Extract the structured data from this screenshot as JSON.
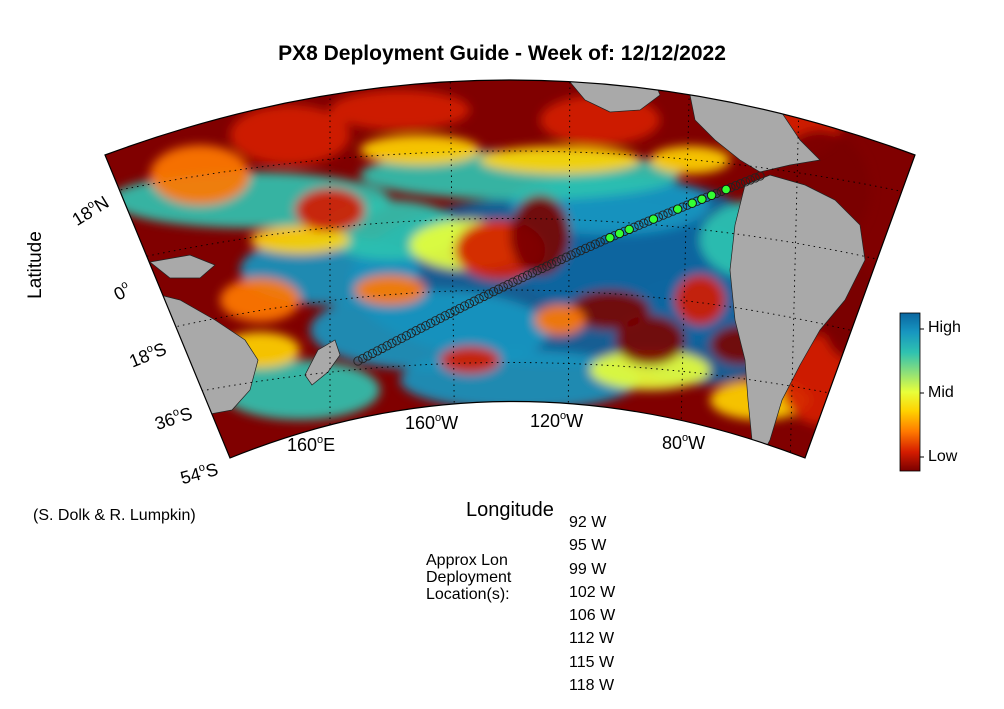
{
  "title": "PX8 Deployment Guide - Week of: 12/12/2022",
  "axes": {
    "xlabel": "Longitude",
    "ylabel": "Latitude",
    "lat_ticks": [
      {
        "deg": "18",
        "hemi": "N"
      },
      {
        "deg": "0",
        "hemi": ""
      },
      {
        "deg": "18",
        "hemi": "S"
      },
      {
        "deg": "36",
        "hemi": "S"
      },
      {
        "deg": "54",
        "hemi": "S"
      }
    ],
    "lon_ticks": [
      {
        "deg": "160",
        "hemi": "E"
      },
      {
        "deg": "160",
        "hemi": "W"
      },
      {
        "deg": "120",
        "hemi": "W"
      },
      {
        "deg": "80",
        "hemi": "W"
      }
    ]
  },
  "colorbar": {
    "labels": {
      "high": "High",
      "mid": "Mid",
      "low": "Low"
    },
    "colors": [
      "#7a0000",
      "#d41c00",
      "#ff7a00",
      "#ffd200",
      "#e8ff3a",
      "#8fe078",
      "#2fc2b0",
      "#1796c0",
      "#0a66a0"
    ]
  },
  "colors": {
    "ocean_low": "#800000",
    "ocean_high": "#0a6aa0",
    "land": "#a9a9a9",
    "deployment_marker": "#33ff33"
  },
  "credit": "(S. Dolk & R. Lumpkin)",
  "deployment": {
    "heading_lines": [
      "Approx Lon",
      "Deployment",
      "Location(s):"
    ],
    "locations": [
      "92 W",
      "95 W",
      "99 W",
      "102 W",
      "106 W",
      "112 W",
      "115 W",
      "118 W"
    ]
  }
}
